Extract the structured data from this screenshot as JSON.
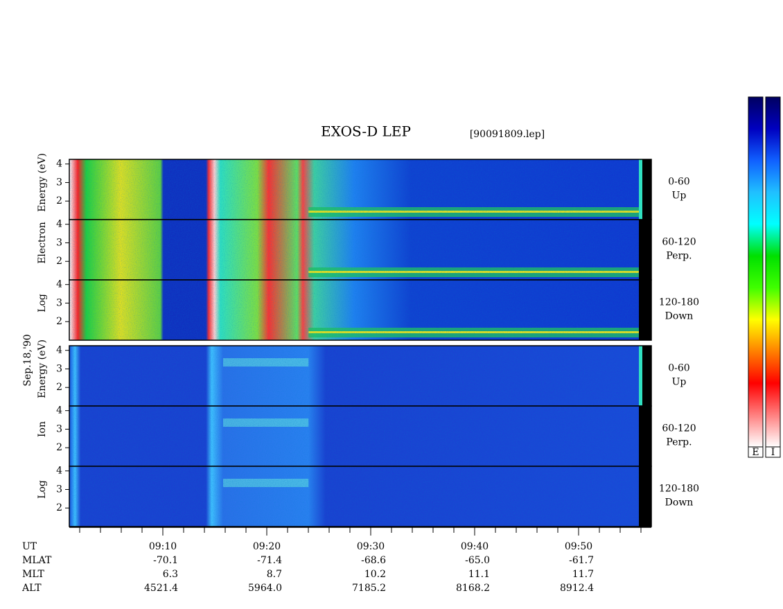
{
  "header": {
    "title": "EXOS-D LEP",
    "file": "[90091809.lep]"
  },
  "chart_data": {
    "type": "spectrogram",
    "xlim": [
      1,
      57
    ],
    "xticks": [
      {
        "value": 10,
        "label": "09:10"
      },
      {
        "value": 20,
        "label": "09:20"
      },
      {
        "value": 30,
        "label": "09:30"
      },
      {
        "value": 40,
        "label": "09:40"
      },
      {
        "value": 50,
        "label": "09:50"
      }
    ],
    "xminorticks": [
      2,
      4,
      6,
      8,
      10,
      12,
      14,
      16,
      18,
      20,
      22,
      24,
      26,
      28,
      30,
      32,
      34,
      36,
      38,
      40,
      42,
      44,
      46,
      48,
      50,
      52,
      54,
      56
    ],
    "ylim": [
      1,
      4.25
    ],
    "yticks": [
      2,
      3,
      4
    ],
    "date": "Sep.18,'90",
    "groups": [
      {
        "name": "electron",
        "ylabel": [
          "Log",
          "Electron",
          "Energy (eV)"
        ],
        "panels": [
          {
            "label": [
              "0-60",
              "Up"
            ]
          },
          {
            "label": [
              "60-120",
              "Perp."
            ]
          },
          {
            "label": [
              "120-180",
              "Down"
            ]
          }
        ]
      },
      {
        "name": "ion",
        "ylabel": [
          "Log",
          "Ion",
          "Energy (eV)"
        ],
        "panels": [
          {
            "label": [
              "0-60",
              "Up"
            ]
          },
          {
            "label": [
              "60-120",
              "Perp."
            ]
          },
          {
            "label": [
              "120-180",
              "Down"
            ]
          }
        ]
      }
    ],
    "orbit_info": {
      "ut_label": "UT",
      "rows": [
        {
          "name": "MLAT",
          "values": [
            "-70.1",
            "-71.4",
            "-68.6",
            "-65.0",
            "-61.7"
          ]
        },
        {
          "name": "MLT",
          "values": [
            "6.3",
            "8.7",
            "10.2",
            "11.1",
            "11.7"
          ]
        },
        {
          "name": "ALT",
          "values": [
            "4521.4",
            "5964.0",
            "7185.2",
            "8168.2",
            "8912.4"
          ]
        }
      ]
    },
    "colorbar": {
      "labels": [
        "E",
        "I"
      ],
      "colors": [
        "#000060",
        "#0000c0",
        "#1060ff",
        "#20c0ff",
        "#00ffff",
        "#00e000",
        "#40ff00",
        "#ffff00",
        "#ff8000",
        "#ff0000",
        "#ff8080",
        "#ffffff"
      ]
    }
  }
}
